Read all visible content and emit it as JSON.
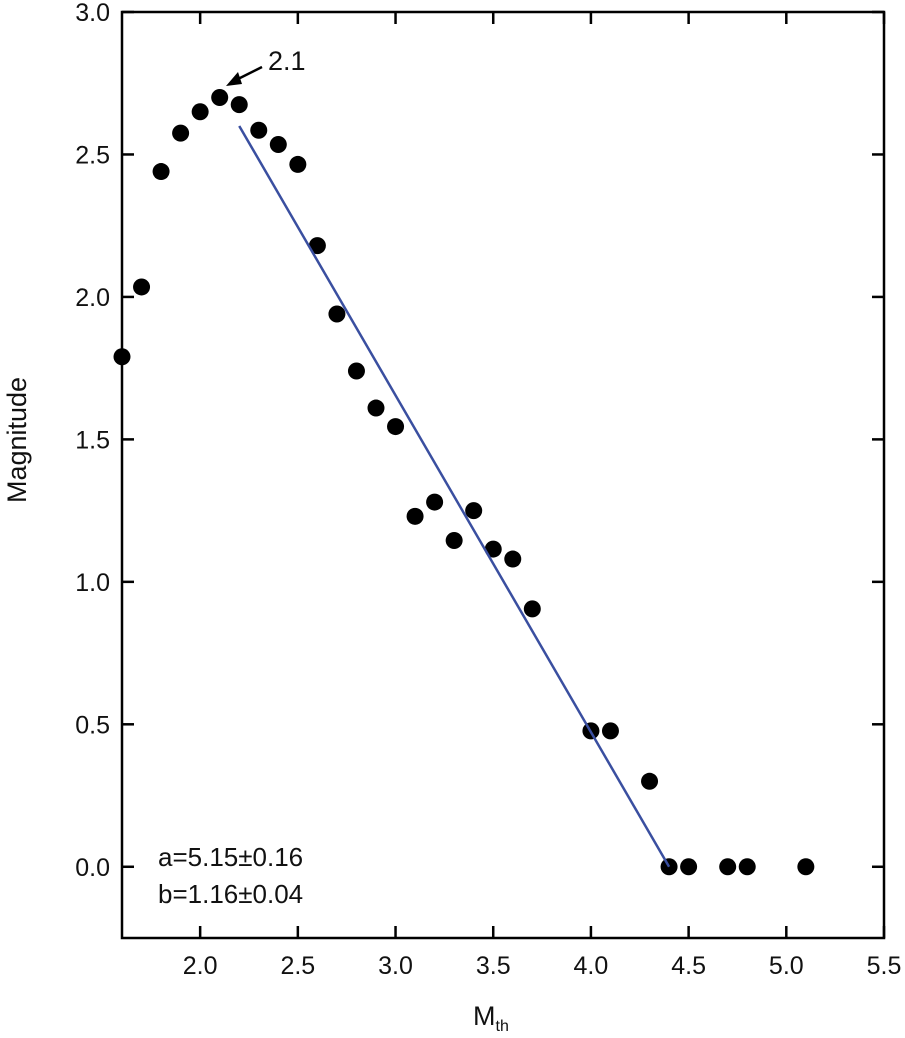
{
  "chart_data": {
    "type": "scatter",
    "ylabel": "Magnitude",
    "xlabel": {
      "main": "M",
      "sub": "th"
    },
    "annotations": [
      "2.1",
      "a=5.15±0.16",
      "b=1.16±0.04"
    ],
    "xlim": [
      1.6,
      5.5
    ],
    "ylim": [
      -0.25,
      3.0
    ],
    "xticks": [
      {
        "value": 2,
        "label": "2.0"
      },
      2.5,
      {
        "value": 3,
        "label": "3.0"
      },
      3.5,
      {
        "value": 4,
        "label": "4.0"
      },
      4.5,
      {
        "value": 5,
        "label": "5.0"
      },
      5.5
    ],
    "yticks": [
      {
        "value": 0,
        "label": "0.0"
      },
      0.5,
      {
        "value": 1,
        "label": "1.0"
      },
      1.5,
      {
        "value": 2,
        "label": "2.0"
      },
      2.5,
      {
        "value": 3,
        "label": "3.0"
      }
    ],
    "series": [
      {
        "kind": "scatter",
        "color": "#000000",
        "x": [
          1.6,
          1.7,
          1.8,
          1.9,
          2.0,
          2.1,
          2.2,
          2.3,
          2.4,
          2.5,
          2.6,
          2.7,
          2.8,
          2.9,
          3.0,
          3.1,
          3.2,
          3.3,
          3.4,
          3.5,
          3.6,
          3.7,
          4.0,
          4.1,
          4.3,
          4.4,
          4.5,
          4.7,
          4.8,
          5.1
        ],
        "values": [
          1.79,
          2.035,
          2.44,
          2.575,
          2.65,
          2.7,
          2.675,
          2.585,
          2.535,
          2.465,
          2.18,
          1.94,
          1.74,
          1.61,
          1.545,
          1.23,
          1.28,
          1.145,
          1.25,
          1.115,
          1.08,
          0.905,
          0.477,
          0.477,
          0.3,
          0,
          0,
          0,
          0,
          0
        ]
      },
      {
        "kind": "line",
        "color": "#3a4fa0",
        "x": [
          2.2,
          4.4
        ],
        "values": [
          2.6,
          0.0
        ]
      }
    ]
  }
}
